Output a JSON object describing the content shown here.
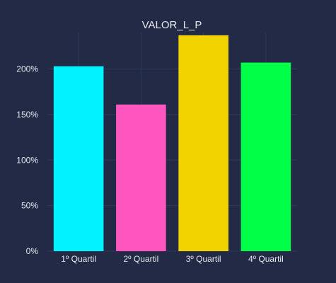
{
  "chart_data": {
    "type": "bar",
    "title": "VALOR_L_P",
    "categories": [
      "1º Quartil",
      "2º Quartil",
      "3º Quartil",
      "4º Quartil"
    ],
    "values": [
      2.03,
      1.61,
      2.37,
      2.07
    ],
    "colors": [
      "#00f3ff",
      "#ff55bf",
      "#f2d300",
      "#00ff47"
    ],
    "ylim": [
      0,
      2.4
    ],
    "yticks": [
      0,
      0.5,
      1,
      1.5,
      2
    ],
    "ytick_labels": [
      "0%",
      "50%",
      "100%",
      "150%",
      "200%"
    ],
    "grid": true,
    "background": "#222a45",
    "xlabel": "",
    "ylabel": ""
  }
}
